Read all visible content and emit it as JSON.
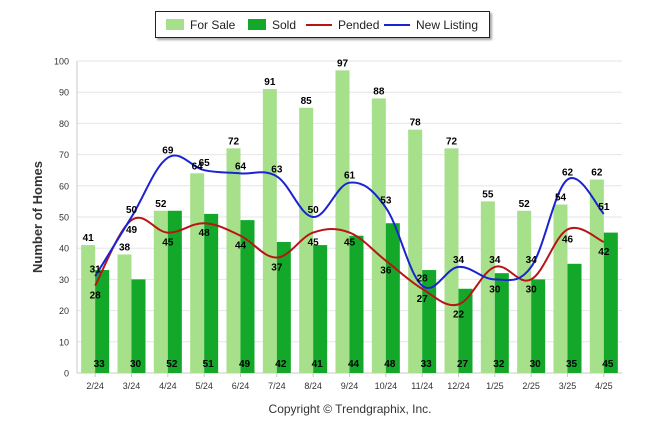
{
  "chart_data": {
    "type": "bar",
    "categories": [
      "2/24",
      "3/24",
      "4/24",
      "5/24",
      "6/24",
      "7/24",
      "8/24",
      "9/24",
      "10/24",
      "11/24",
      "12/24",
      "1/25",
      "2/25",
      "3/25",
      "4/25"
    ],
    "series": [
      {
        "name": "For Sale",
        "type": "bar",
        "color": "#a6e08a",
        "values": [
          41,
          38,
          52,
          64,
          72,
          91,
          85,
          97,
          88,
          78,
          72,
          55,
          52,
          54,
          62
        ]
      },
      {
        "name": "Sold",
        "type": "bar",
        "color": "#13a82a",
        "values": [
          33,
          30,
          52,
          51,
          49,
          42,
          41,
          44,
          48,
          33,
          27,
          32,
          30,
          35,
          45
        ]
      },
      {
        "name": "Pended",
        "type": "line",
        "color": "#b71515",
        "values": [
          28,
          49,
          45,
          48,
          44,
          37,
          45,
          45,
          36,
          27,
          22,
          34,
          30,
          46,
          42
        ]
      },
      {
        "name": "New Listing",
        "type": "line",
        "color": "#1a23d1",
        "values": [
          31,
          50,
          69,
          65,
          64,
          63,
          50,
          61,
          53,
          28,
          34,
          30,
          34,
          62,
          51
        ]
      }
    ],
    "xlabel": "",
    "ylabel": "Number of Homes",
    "ylim": [
      0,
      100
    ],
    "yticks": [
      0,
      10,
      20,
      30,
      40,
      50,
      60,
      70,
      80,
      90,
      100
    ],
    "grid": true,
    "legend": "top-center"
  },
  "legend": {
    "items": [
      {
        "label": "For Sale",
        "kind": "bar",
        "color": "#a6e08a"
      },
      {
        "label": "Sold",
        "kind": "bar",
        "color": "#13a82a"
      },
      {
        "label": "Pended",
        "kind": "line",
        "color": "#b71515"
      },
      {
        "label": "New Listing",
        "kind": "line",
        "color": "#1a23d1"
      }
    ]
  },
  "footer": {
    "copyright": "Copyright © Trendgraphix, Inc."
  }
}
